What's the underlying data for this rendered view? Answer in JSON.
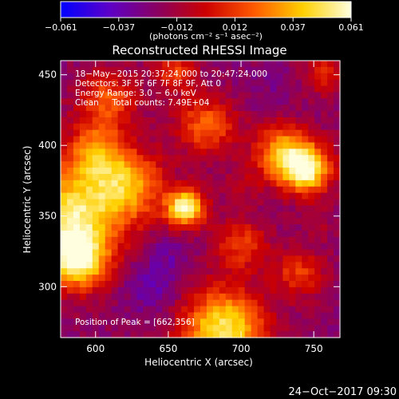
{
  "chart_data": {
    "type": "heatmap",
    "title": "Reconstructed RHESSI Image",
    "xlabel": "Heliocentric X (arcsec)",
    "ylabel": "Heliocentric Y (arcsec)",
    "xlim": [
      576,
      768
    ],
    "ylim": [
      264,
      460
    ],
    "x_ticks": [
      {
        "value": 600,
        "label": "600"
      },
      {
        "value": 650,
        "label": "650"
      },
      {
        "value": 700,
        "label": "700"
      },
      {
        "value": 750,
        "label": "750"
      }
    ],
    "y_ticks": [
      {
        "value": 300,
        "label": "300"
      },
      {
        "value": 350,
        "label": "350"
      },
      {
        "value": 400,
        "label": "400"
      },
      {
        "value": 450,
        "label": "450"
      }
    ],
    "colorbar": {
      "min": -0.061,
      "max": 0.061,
      "tick_labels": [
        "−0.061",
        "−0.037",
        "−0.012",
        "0.012",
        "0.037",
        "0.061"
      ],
      "unit_label": "(photons cm⁻² s⁻¹ asec⁻²)",
      "colors": [
        "#0000ff",
        "#5c00c8",
        "#8a0060",
        "#cc0000",
        "#ff5a00",
        "#ffd000",
        "#ffffe0"
      ]
    },
    "sources": [
      {
        "x": 662,
        "y": 356,
        "sigma": 9,
        "value": 0.061
      },
      {
        "x": 583,
        "y": 350,
        "sigma": 24,
        "value": 0.048
      },
      {
        "x": 588,
        "y": 318,
        "sigma": 14,
        "value": 0.044
      },
      {
        "x": 745,
        "y": 383,
        "sigma": 12,
        "value": 0.055
      },
      {
        "x": 728,
        "y": 395,
        "sigma": 14,
        "value": 0.03
      },
      {
        "x": 688,
        "y": 270,
        "sigma": 20,
        "value": 0.05
      },
      {
        "x": 622,
        "y": 372,
        "sigma": 18,
        "value": 0.03
      },
      {
        "x": 676,
        "y": 414,
        "sigma": 14,
        "value": 0.022
      },
      {
        "x": 608,
        "y": 432,
        "sigma": 14,
        "value": 0.018
      },
      {
        "x": 700,
        "y": 330,
        "sigma": 13,
        "value": 0.012
      },
      {
        "x": 740,
        "y": 310,
        "sigma": 12,
        "value": 0.012
      },
      {
        "x": 600,
        "y": 396,
        "sigma": 14,
        "value": 0.02
      },
      {
        "x": 655,
        "y": 452,
        "sigma": 10,
        "value": 0.012
      },
      {
        "x": 758,
        "y": 450,
        "sigma": 10,
        "value": 0.008
      },
      {
        "x": 640,
        "y": 300,
        "sigma": 14,
        "value": -0.035
      },
      {
        "x": 650,
        "y": 325,
        "sigma": 9,
        "value": -0.03
      },
      {
        "x": 720,
        "y": 440,
        "sigma": 14,
        "value": -0.025
      },
      {
        "x": 700,
        "y": 372,
        "sigma": 10,
        "value": -0.01
      },
      {
        "x": 620,
        "y": 282,
        "sigma": 10,
        "value": -0.02
      },
      {
        "x": 755,
        "y": 345,
        "sigma": 8,
        "value": -0.012
      }
    ],
    "annotations": [
      "18−May−2015 20:37:24.000 to 20:47:24.000",
      "Detectors: 3F 5F 6F 7F 8F 9F, Att 0",
      "Energy Range: 3.0 − 6.0 keV",
      "Clean     Total counts: 7.49E+04"
    ],
    "peak_label": "Position of Peak = [662,356]",
    "grid": false
  },
  "footer": {
    "date": "24−Oct−2017 09:30"
  }
}
